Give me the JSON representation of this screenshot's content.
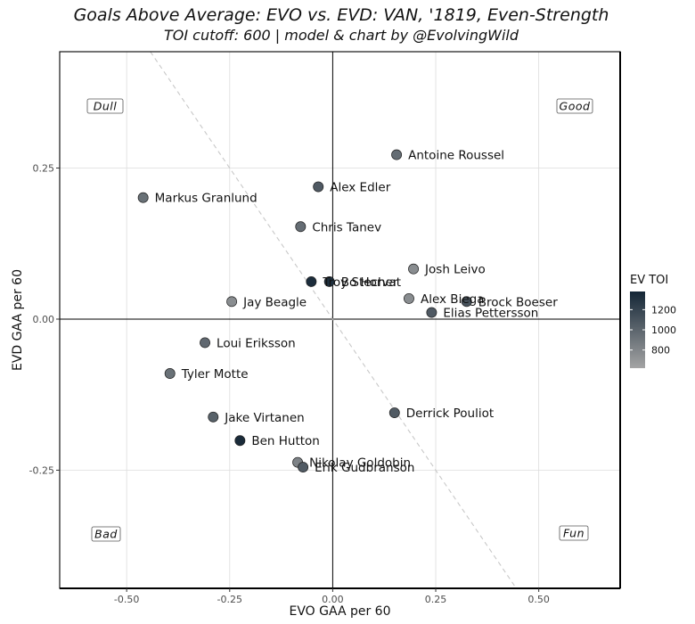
{
  "chart_data": {
    "type": "scatter",
    "title": "Goals Above Average: EVO vs. EVD: VAN, '1819, Even-Strength",
    "subtitle": "TOI cutoff: 600 | model & chart by @EvolvingWild",
    "xlabel": "EVO GAA per 60",
    "ylabel": "EVD GAA per 60",
    "xlim": [
      -0.6625,
      0.6975
    ],
    "ylim": [
      -0.4455,
      0.4425
    ],
    "xticks": [
      -0.5,
      -0.25,
      0.0,
      0.25,
      0.5
    ],
    "yticks": [
      -0.25,
      0.0,
      0.25
    ],
    "xtick_labels": [
      "-0.50",
      "-0.25",
      "0.00",
      "0.25",
      "0.50"
    ],
    "ytick_labels": [
      "-0.25",
      "0.00",
      "0.25"
    ],
    "grid": true,
    "reference_lines": {
      "x": 0,
      "y": 0,
      "diagonal": "y = -x (dashed)"
    },
    "quadrant_labels": {
      "top_left": "Dull",
      "top_right": "Good",
      "bottom_left": "Bad",
      "bottom_right": "Fun"
    },
    "color_scale": {
      "title": "EV TOI",
      "ticks": [
        800,
        1000,
        1200
      ],
      "tick_labels": [
        "800",
        "1000",
        "1200"
      ],
      "range": [
        620,
        1380
      ],
      "low_color": "#a4a4a4",
      "high_color": "#142636"
    },
    "points": [
      {
        "name": "Antoine Roussel",
        "x": 0.155,
        "y": 0.272,
        "toi": 960
      },
      {
        "name": "Alex Edler",
        "x": -0.035,
        "y": 0.219,
        "toi": 1070
      },
      {
        "name": "Markus Granlund",
        "x": -0.46,
        "y": 0.201,
        "toi": 930
      },
      {
        "name": "Chris Tanev",
        "x": -0.078,
        "y": 0.153,
        "toi": 950
      },
      {
        "name": "Josh Leivo",
        "x": 0.196,
        "y": 0.083,
        "toi": 760
      },
      {
        "name": "Bo Horvat",
        "x": -0.008,
        "y": 0.062,
        "toi": 1320
      },
      {
        "name": "Troy Stecher",
        "x": -0.052,
        "y": 0.062,
        "toi": 1340
      },
      {
        "name": "Alex Biega",
        "x": 0.185,
        "y": 0.034,
        "toi": 760
      },
      {
        "name": "Brock Boeser",
        "x": 0.325,
        "y": 0.029,
        "toi": 1110
      },
      {
        "name": "Jay Beagle",
        "x": -0.245,
        "y": 0.029,
        "toi": 760
      },
      {
        "name": "Elias Pettersson",
        "x": 0.24,
        "y": 0.011,
        "toi": 1070
      },
      {
        "name": "Loui Eriksson",
        "x": -0.31,
        "y": -0.039,
        "toi": 980
      },
      {
        "name": "Tyler Motte",
        "x": -0.395,
        "y": -0.09,
        "toi": 930
      },
      {
        "name": "Derrick Pouliot",
        "x": 0.15,
        "y": -0.155,
        "toi": 1060
      },
      {
        "name": "Jake Virtanen",
        "x": -0.29,
        "y": -0.162,
        "toi": 1020
      },
      {
        "name": "Ben Hutton",
        "x": -0.225,
        "y": -0.201,
        "toi": 1350
      },
      {
        "name": "Nikolay Goldobin",
        "x": -0.085,
        "y": -0.237,
        "toi": 820
      },
      {
        "name": "Erik Gudbranson",
        "x": -0.072,
        "y": -0.245,
        "toi": 1060
      }
    ]
  }
}
